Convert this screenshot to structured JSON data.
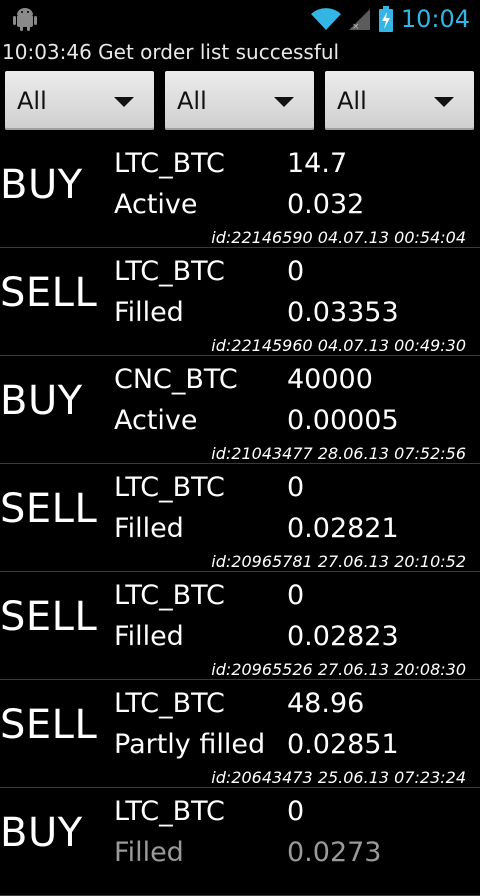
{
  "status_bar": {
    "time": "10:04",
    "icons": [
      "android-debug-icon",
      "wifi-icon",
      "signal-icon",
      "battery-charging-icon"
    ]
  },
  "status_message": "10:03:46  Get order list successful",
  "filters": [
    {
      "value": "All"
    },
    {
      "value": "All"
    },
    {
      "value": "All"
    }
  ],
  "orders": [
    {
      "side": "BUY",
      "pair": "LTC_BTC",
      "amount": "14.7",
      "state": "Active",
      "price": "0.032",
      "meta": "id:22146590 04.07.13 00:54:04"
    },
    {
      "side": "SELL",
      "pair": "LTC_BTC",
      "amount": "0",
      "state": "Filled",
      "price": "0.03353",
      "meta": "id:22145960 04.07.13 00:49:30"
    },
    {
      "side": "BUY",
      "pair": "CNC_BTC",
      "amount": "40000",
      "state": "Active",
      "price": "0.00005",
      "meta": "id:21043477 28.06.13 07:52:56"
    },
    {
      "side": "SELL",
      "pair": "LTC_BTC",
      "amount": "0",
      "state": "Filled",
      "price": "0.02821",
      "meta": "id:20965781 27.06.13 20:10:52"
    },
    {
      "side": "SELL",
      "pair": "LTC_BTC",
      "amount": "0",
      "state": "Filled",
      "price": "0.02823",
      "meta": "id:20965526 27.06.13 20:08:30"
    },
    {
      "side": "SELL",
      "pair": "LTC_BTC",
      "amount": "48.96",
      "state": "Partly filled",
      "price": "0.02851",
      "meta": "id:20643473 25.06.13 07:23:24"
    },
    {
      "side": "BUY",
      "pair": "LTC_BTC",
      "amount": "0",
      "state": "Filled",
      "price": "0.0273",
      "meta": ""
    }
  ]
}
